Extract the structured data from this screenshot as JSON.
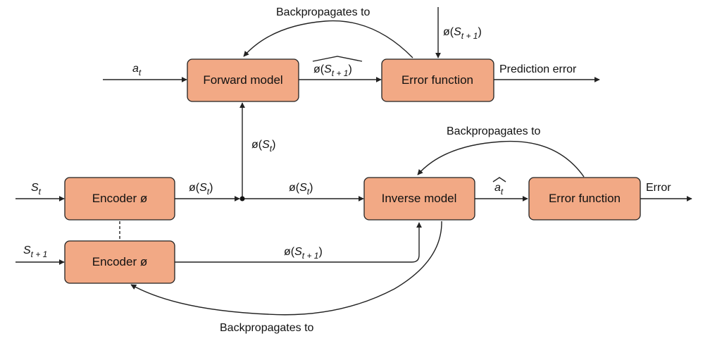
{
  "diagram": {
    "nodes": {
      "forward_model": "Forward model",
      "error_function_top": "Error function",
      "encoder_1": "Encoder ø",
      "encoder_2": "Encoder ø",
      "inverse_model": "Inverse model",
      "error_function_bottom": "Error function"
    },
    "labels": {
      "backprop_top": "Backpropagates to",
      "backprop_middle": "Backpropagates to",
      "backprop_bottom": "Backpropagates to",
      "prediction_error": "Prediction error",
      "error": "Error"
    },
    "math": {
      "phi": "ø",
      "open_paren": "(",
      "close_paren": ")",
      "a": "a",
      "S": "S",
      "sub_t": "t",
      "sub_t1": "t + 1"
    },
    "colors": {
      "box_fill": "#f2a985",
      "stroke": "#222222",
      "text": "#111111"
    }
  }
}
